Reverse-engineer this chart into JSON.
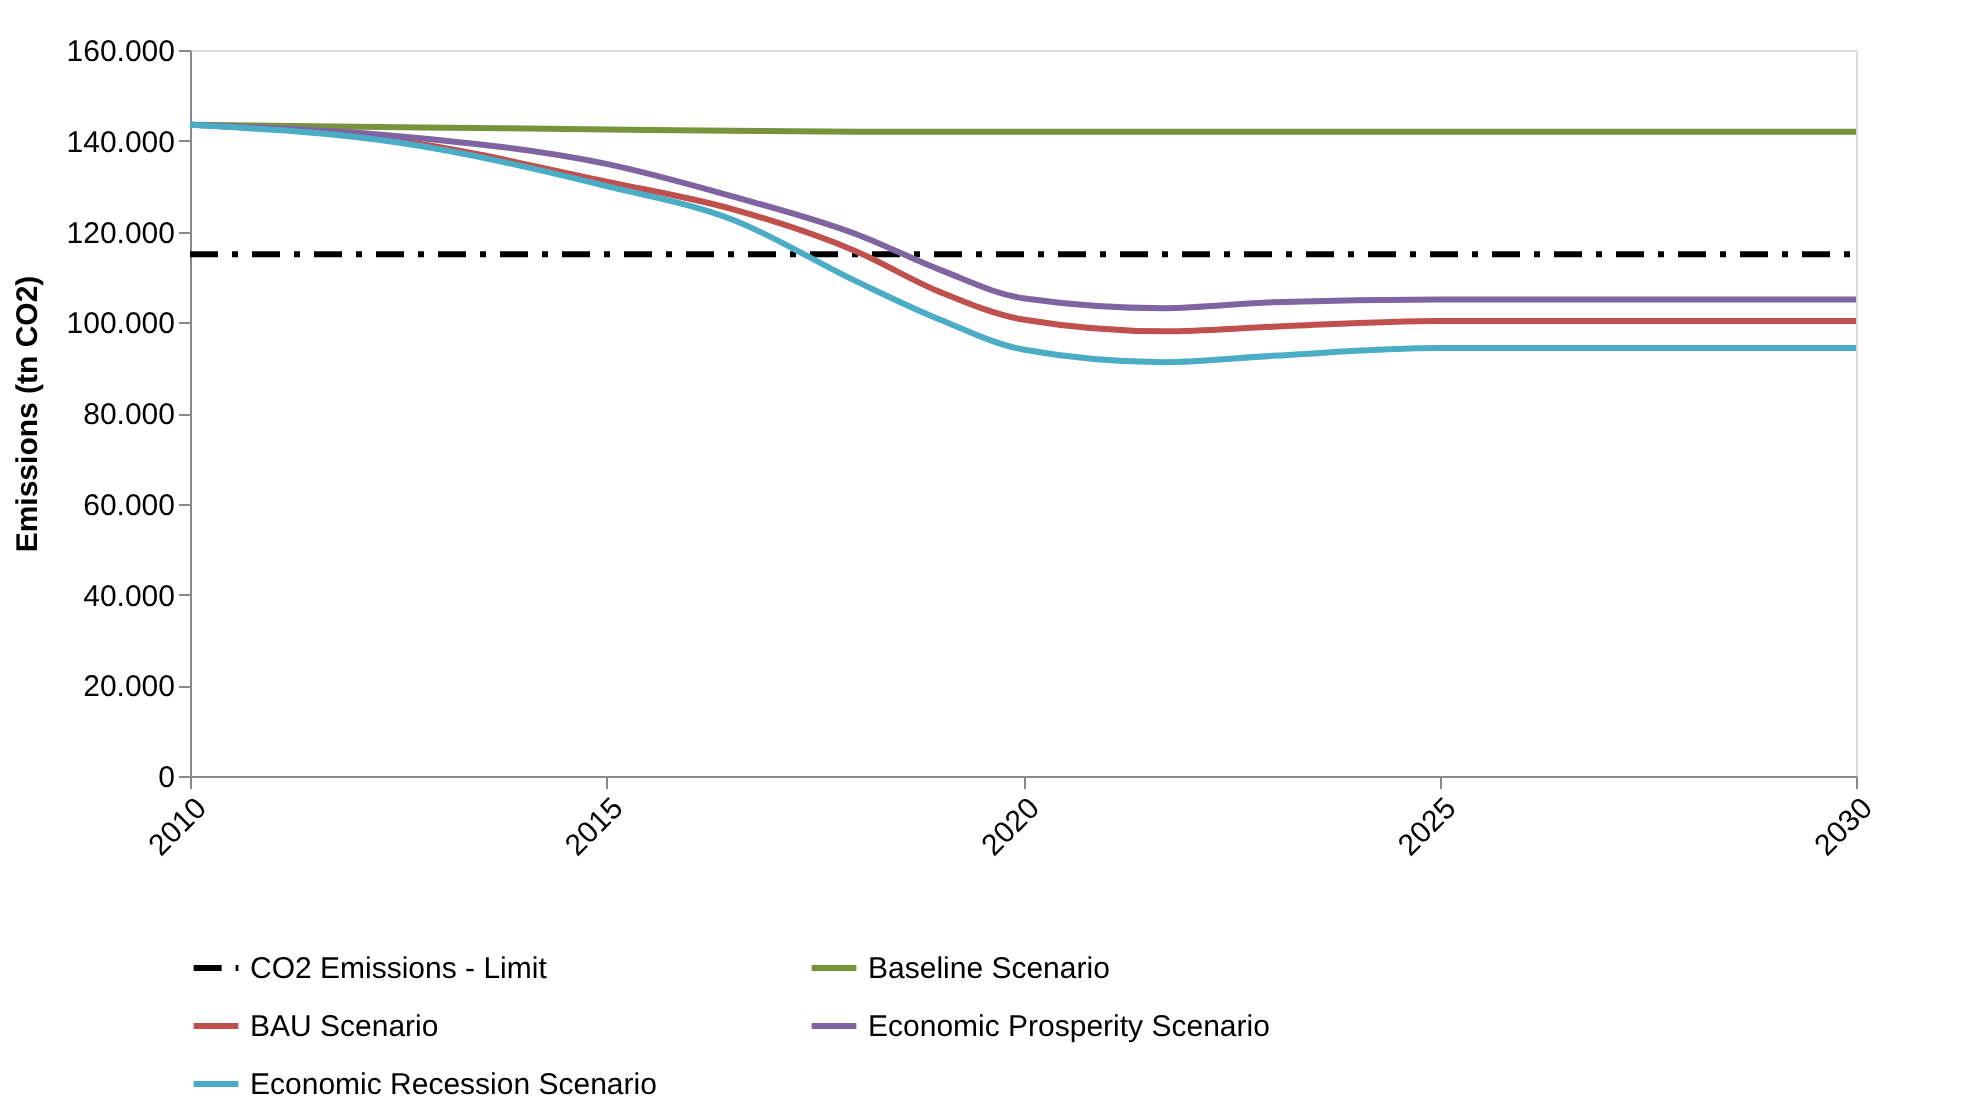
{
  "chart_data": {
    "type": "line",
    "ylabel": "Emissions (tn CO2)",
    "x": [
      2010,
      2012.5,
      2015,
      2016.5,
      2018,
      2019,
      2020,
      2021.7,
      2023,
      2025,
      2030
    ],
    "series": [
      {
        "name": "CO2 Emissions - Limit",
        "color": "#000000",
        "line_style": "dashed",
        "values": [
          115000,
          115000,
          115000,
          115000,
          115000,
          115000,
          115000,
          115000,
          115000,
          115000,
          115000
        ]
      },
      {
        "name": "Baseline Scenario",
        "color": "#77933c",
        "line_style": "solid",
        "values": [
          143500,
          143000,
          142500,
          142200,
          142000,
          142000,
          142000,
          142000,
          142000,
          142000,
          142000
        ]
      },
      {
        "name": "BAU Scenario",
        "color": "#c0504d",
        "line_style": "solid",
        "values": [
          143500,
          140000,
          131000,
          125000,
          115600,
          106700,
          100600,
          98000,
          99000,
          100300,
          100300
        ]
      },
      {
        "name": "Economic Prosperity Scenario",
        "color": "#8064a2",
        "line_style": "solid",
        "values": [
          143500,
          141000,
          134900,
          127800,
          119400,
          111600,
          105300,
          103100,
          104400,
          105000,
          105000
        ]
      },
      {
        "name": "Economic Recession Scenario",
        "color": "#4bacc6",
        "line_style": "solid",
        "values": [
          143500,
          139600,
          130000,
          122700,
          109000,
          100600,
          94000,
          91200,
          92600,
          94300,
          94300
        ]
      }
    ],
    "xlim": [
      2010,
      2030
    ],
    "xticks": [
      2010,
      2015,
      2020,
      2025,
      2030
    ],
    "ylim": [
      0,
      160000
    ],
    "yticks": [
      0,
      {
        "value": 20000,
        "label": "20.000"
      },
      {
        "value": 40000,
        "label": "40.000"
      },
      {
        "value": 60000,
        "label": "60.000"
      },
      {
        "value": 80000,
        "label": "80.000"
      },
      {
        "value": 100000,
        "label": "100.000"
      },
      {
        "value": 120000,
        "label": "120.000"
      },
      {
        "value": 140000,
        "label": "140.000"
      },
      {
        "value": 160000,
        "label": "160.000"
      }
    ],
    "grid": false,
    "legend": "bottom",
    "marker": "none"
  }
}
